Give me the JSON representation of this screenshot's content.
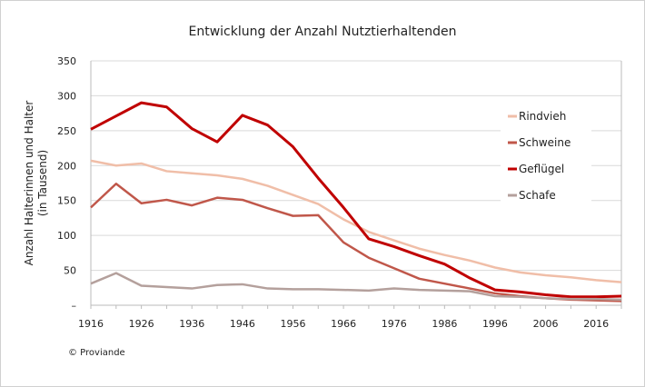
{
  "chart_data": {
    "type": "line",
    "title": "Entwicklung der Anzahl Nutztierhaltenden",
    "ylabel": "Anzahl Halterinnen und  Halter\n(in Tausend)",
    "xlabel": "",
    "ylim": [
      0,
      350
    ],
    "yticks": [
      "–",
      "50",
      "100",
      "150",
      "200",
      "250",
      "300",
      "350"
    ],
    "xticks": [
      "1916",
      "1926",
      "1936",
      "1946",
      "1956",
      "1966",
      "1976",
      "1986",
      "1996",
      "2006",
      "2016"
    ],
    "grid": true,
    "legend_position": "right",
    "x": [
      1916,
      1921,
      1926,
      1931,
      1936,
      1941,
      1946,
      1951,
      1956,
      1961,
      1966,
      1971,
      1976,
      1981,
      1986,
      1991,
      1996,
      2001,
      2006,
      2011,
      2016,
      2021
    ],
    "series": [
      {
        "name": "Rindvieh",
        "color": "#f0bea8",
        "values": [
          207,
          200,
          203,
          192,
          189,
          186,
          181,
          171,
          158,
          145,
          123,
          105,
          93,
          81,
          72,
          64,
          54,
          47,
          43,
          40,
          36,
          33
        ]
      },
      {
        "name": "Schweine",
        "color": "#c0574a",
        "values": [
          140,
          174,
          146,
          151,
          143,
          154,
          151,
          139,
          128,
          129,
          90,
          68,
          53,
          38,
          31,
          24,
          17,
          13,
          10,
          8,
          7,
          6
        ]
      },
      {
        "name": "Geflügel",
        "color": "#c00000",
        "values": [
          252,
          271,
          290,
          284,
          253,
          234,
          272,
          258,
          227,
          182,
          140,
          95,
          84,
          71,
          59,
          39,
          22,
          19,
          15,
          12,
          12,
          13
        ]
      },
      {
        "name": "Schafe",
        "color": "#b4a09c",
        "values": [
          31,
          46,
          28,
          26,
          24,
          29,
          30,
          24,
          23,
          23,
          22,
          21,
          24,
          22,
          21,
          20,
          13,
          12,
          10,
          9,
          9,
          8
        ]
      }
    ]
  },
  "credit": "© Proviande"
}
